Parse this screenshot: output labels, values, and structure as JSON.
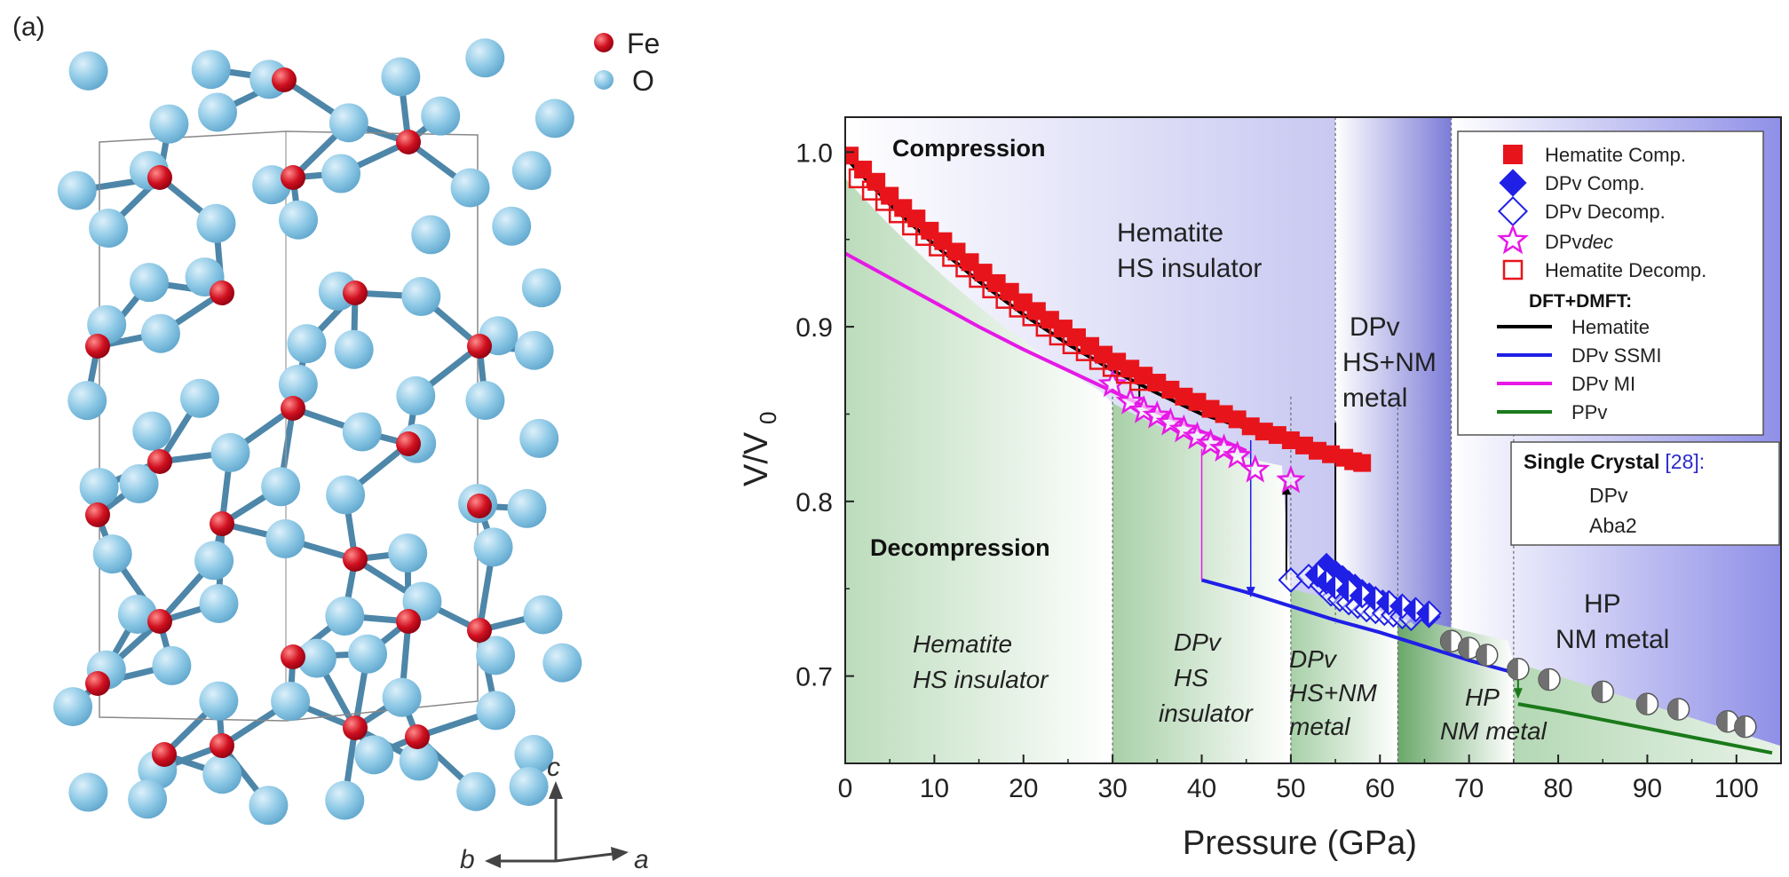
{
  "panel_label": "(a)",
  "crystal": {
    "legend": [
      {
        "label": "Fe",
        "color": "#c8102e"
      },
      {
        "label": "O",
        "color": "#8ec9e6"
      }
    ],
    "axes": {
      "c": "c",
      "b": "b",
      "a": "a"
    }
  },
  "colors": {
    "hematite": "#e8141b",
    "dpv": "#1f1fe6",
    "dpvdec": "#e619e6",
    "black": "#000000",
    "ppv": "#1a7a1a",
    "aba2": "#8a8a8a"
  },
  "chart_data": {
    "type": "scatter",
    "xlabel": "Pressure (GPa)",
    "ylabel_main": "V/V",
    "ylabel_sub": "0",
    "xlim": [
      0,
      105
    ],
    "ylim": [
      0.65,
      1.02
    ],
    "xticks": [
      0,
      10,
      20,
      30,
      40,
      50,
      60,
      70,
      80,
      90,
      100
    ],
    "yticks": [
      0.7,
      0.8,
      0.9,
      1.0
    ],
    "ytick_labels": [
      "0.7",
      "0.8",
      "0.9",
      "1.0"
    ],
    "regions": {
      "top_boundaries": [
        55,
        68
      ],
      "bottom_boundaries": [
        30,
        50,
        62,
        75
      ]
    },
    "annotations": {
      "compression": "Compression",
      "decompression": "Decompression",
      "top_hematite": [
        "Hematite",
        "HS insulator"
      ],
      "top_dpv": [
        "DPv",
        "HS+NM",
        "metal"
      ],
      "top_hp": [
        "HP",
        "NM metal"
      ],
      "bottom_hematite": [
        "Hematite",
        "HS insulator"
      ],
      "bottom_dpv_hs": [
        "DPv",
        "HS",
        "insulator"
      ],
      "bottom_dpv_hsnm": [
        "DPv",
        "HS+NM",
        "metal"
      ],
      "bottom_hp": [
        "HP",
        "NM metal"
      ]
    },
    "series": [
      {
        "name": "Hematite Comp.",
        "marker": "square-filled",
        "color": "#e8141b",
        "x": [
          0.5,
          2,
          3.5,
          5,
          6.5,
          8,
          9.5,
          11,
          12.5,
          14,
          15.5,
          17,
          18.5,
          20,
          21.5,
          23,
          24.5,
          26,
          27.5,
          29,
          30.5,
          32,
          33.5,
          35,
          36.5,
          38,
          39.5,
          41,
          42.5,
          44,
          45.5,
          47,
          48.5,
          50,
          51.5,
          53,
          54.5,
          56,
          57,
          58
        ],
        "y": [
          0.998,
          0.99,
          0.983,
          0.975,
          0.968,
          0.962,
          0.955,
          0.949,
          0.943,
          0.937,
          0.931,
          0.925,
          0.92,
          0.914,
          0.909,
          0.904,
          0.899,
          0.894,
          0.889,
          0.884,
          0.88,
          0.876,
          0.872,
          0.868,
          0.864,
          0.86,
          0.857,
          0.853,
          0.85,
          0.847,
          0.843,
          0.84,
          0.838,
          0.835,
          0.832,
          0.829,
          0.827,
          0.825,
          0.823,
          0.822
        ]
      },
      {
        "name": "DPv Comp.",
        "marker": "diamond-filled",
        "color": "#1f1fe6",
        "x": [
          54,
          55,
          55.8,
          56.5,
          57.2,
          58,
          58.8,
          59.5,
          60.3,
          61,
          61.8,
          62.5,
          63.3,
          64,
          65.5
        ],
        "y": [
          0.764,
          0.76,
          0.757,
          0.754,
          0.752,
          0.749,
          0.747,
          0.745,
          0.743,
          0.741,
          0.739,
          0.738,
          0.737,
          0.735,
          0.734
        ]
      },
      {
        "name": "DPv Decomp.",
        "marker": "diamond-open",
        "color": "#1f1fe6",
        "x": [
          50,
          52,
          53.5,
          54.5,
          55.5,
          56.5,
          57.5,
          58.5,
          59.5,
          60.5,
          61.5,
          62.5,
          63.5
        ],
        "y": [
          0.755,
          0.757,
          0.752,
          0.747,
          0.744,
          0.742,
          0.74,
          0.738,
          0.737,
          0.736,
          0.735,
          0.734,
          0.733
        ]
      },
      {
        "name": "DPv",
        "legend_suffix": "dec",
        "marker": "star-open",
        "color": "#e619e6",
        "x": [
          30,
          32,
          33.5,
          35,
          36.5,
          38,
          39.5,
          41,
          42.5,
          44,
          46,
          50
        ],
        "y": [
          0.867,
          0.857,
          0.852,
          0.849,
          0.845,
          0.841,
          0.837,
          0.833,
          0.83,
          0.826,
          0.818,
          0.812
        ]
      },
      {
        "name": "Hematite Decomp.",
        "marker": "square-open",
        "color": "#e8141b",
        "x": [
          1.5,
          3,
          4.5,
          6,
          7.5,
          9,
          10.5,
          12,
          13.5,
          15,
          16.5,
          18,
          19.5,
          21,
          22.5,
          24,
          25.5,
          27,
          28.5,
          30,
          31.5,
          33
        ],
        "y": [
          0.985,
          0.978,
          0.972,
          0.965,
          0.958,
          0.952,
          0.946,
          0.94,
          0.934,
          0.928,
          0.922,
          0.916,
          0.911,
          0.906,
          0.9,
          0.895,
          0.89,
          0.886,
          0.881,
          0.877,
          0.873,
          0.869
        ]
      },
      {
        "name": "DPv",
        "group": "single_crystal",
        "marker": "diamond-half",
        "color": "#1f1fe6",
        "x": [
          53,
          54,
          55,
          56.5,
          58,
          59.5,
          61,
          62.5,
          64,
          65.5
        ],
        "y": [
          0.758,
          0.754,
          0.751,
          0.749,
          0.746,
          0.744,
          0.742,
          0.74,
          0.738,
          0.736
        ]
      },
      {
        "name": "Aba2",
        "group": "single_crystal",
        "marker": "circle-half",
        "color": "#8a8a8a",
        "x": [
          68,
          70,
          72,
          75.5,
          79,
          85,
          90,
          93.5,
          99,
          101
        ],
        "y": [
          0.72,
          0.716,
          0.712,
          0.704,
          0.698,
          0.691,
          0.684,
          0.681,
          0.674,
          0.671
        ]
      }
    ],
    "lines": [
      {
        "name": "Hematite",
        "color": "#000000",
        "x": [
          0,
          5,
          10,
          15,
          20,
          25,
          30,
          35,
          40,
          45.5
        ],
        "y": [
          0.997,
          0.97,
          0.947,
          0.926,
          0.907,
          0.89,
          0.875,
          0.862,
          0.85,
          0.841
        ]
      },
      {
        "name": "DPv SSMI",
        "color": "#1f1fe6",
        "x": [
          40,
          45,
          50,
          55,
          60,
          65,
          70,
          75
        ],
        "y": [
          0.755,
          0.748,
          0.74,
          0.732,
          0.725,
          0.717,
          0.709,
          0.702
        ]
      },
      {
        "name": "DPv MI",
        "color": "#e619e6",
        "x": [
          0,
          5,
          10,
          15,
          20,
          25,
          30,
          35,
          40,
          45
        ],
        "y": [
          0.942,
          0.928,
          0.914,
          0.9,
          0.887,
          0.875,
          0.863,
          0.851,
          0.84,
          0.829
        ]
      },
      {
        "name": "PPv",
        "color": "#1a7a1a",
        "x": [
          75.5,
          80,
          85,
          90,
          95,
          100,
          104
        ],
        "y": [
          0.684,
          0.68,
          0.675,
          0.67,
          0.665,
          0.66,
          0.656
        ]
      }
    ],
    "legend": {
      "entries": [
        "Hematite Comp.",
        "DPv Comp.",
        "DPv Decomp.",
        "DPvdec",
        "Hematite Decomp."
      ],
      "dpvdec_prefix": "DPv",
      "dpvdec_suffix": "dec",
      "dft_title": "DFT+DMFT:",
      "dft_entries": [
        "Hematite",
        "DPv SSMI",
        "DPv MI",
        "PPv"
      ],
      "single_crystal_title": "Single Crystal",
      "single_crystal_ref": "[28]:",
      "single_crystal_entries": [
        "DPv",
        "Aba2"
      ]
    }
  }
}
